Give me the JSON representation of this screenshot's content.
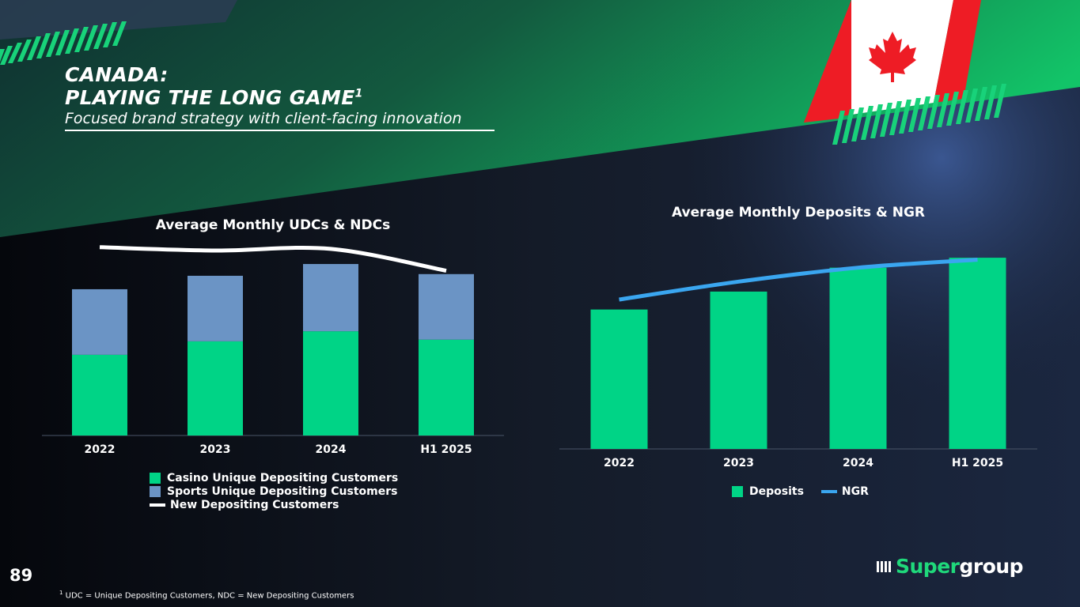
{
  "slide": {
    "title_line1": "CANADA:",
    "title_line2": "PLAYING THE LONG GAME",
    "title_sup": "1",
    "subtitle": "Focused brand strategy with client-facing innovation",
    "page_number": "89",
    "footnote_sup": "1",
    "footnote": "UDC = Unique Depositing Customers, NDC = New Depositing Customers",
    "logo_part1": "Super",
    "logo_part2": "group"
  },
  "colors": {
    "casino": "#00d486",
    "sports": "#6b94c5",
    "ndc_line": "#ffffff",
    "deposits": "#00d486",
    "ngr": "#3aa6f0",
    "flag_red": "#ee1c25"
  },
  "icons": [
    "maple-leaf-icon",
    "supergroup-logo-icon"
  ],
  "chart_data": [
    {
      "type": "bar",
      "stacked": true,
      "title": "Average Monthly UDCs & NDCs",
      "categories": [
        "2022",
        "2023",
        "2024",
        "H1 2025"
      ],
      "series": [
        {
          "name": "Casino Unique Depositing Customers",
          "type": "bar",
          "values": [
            48,
            56,
            62,
            57
          ]
        },
        {
          "name": "Sports Unique Depositing Customers",
          "type": "bar",
          "values": [
            39,
            39,
            40,
            39
          ]
        },
        {
          "name": "New Depositing Customers",
          "type": "line",
          "values": [
            112,
            110,
            111,
            98
          ]
        }
      ],
      "ylim": [
        0,
        118
      ],
      "legend": [
        "Casino Unique Depositing Customers",
        "Sports Unique Depositing Customers",
        "New Depositing Customers"
      ],
      "legend_position": "bottom"
    },
    {
      "type": "bar",
      "title": "Average Monthly Deposits & NGR",
      "categories": [
        "2022",
        "2023",
        "2024",
        "H1 2025"
      ],
      "series": [
        {
          "name": "Deposits",
          "type": "bar",
          "values": [
            70,
            79,
            91,
            96
          ]
        },
        {
          "name": "NGR",
          "type": "line",
          "values": [
            75,
            84,
            91,
            95
          ]
        }
      ],
      "ylim": [
        0,
        100
      ],
      "legend": [
        "Deposits",
        "NGR"
      ],
      "legend_position": "bottom"
    }
  ]
}
